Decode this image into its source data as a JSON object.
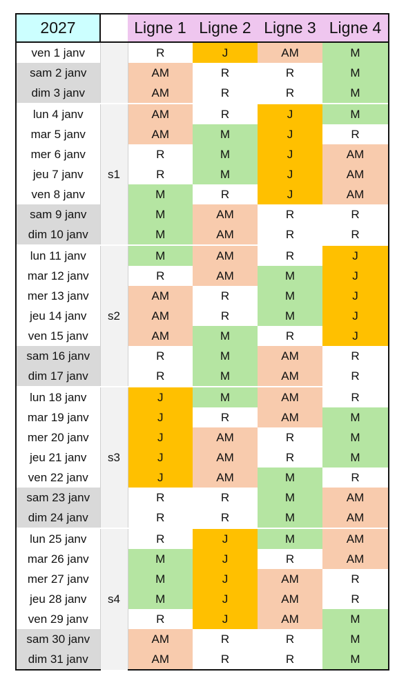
{
  "header": {
    "year": "2027",
    "lines": [
      "Ligne 1",
      "Ligne 2",
      "Ligne 3",
      "Ligne 4"
    ]
  },
  "shift_colors": {
    "R": "#ffffff",
    "J": "#ffc000",
    "AM": "#f8cbad",
    "M": "#b5e5a2"
  },
  "date_colors": {
    "weekday": "#ffffff",
    "weekend": "#d9d9d9",
    "year_cell": "#ccffff",
    "line_header": "#efc6ef"
  },
  "weeks": [
    {
      "label": "",
      "start": 0,
      "span": 3
    },
    {
      "label": "s1",
      "start": 3,
      "span": 7
    },
    {
      "label": "s2",
      "start": 10,
      "span": 7
    },
    {
      "label": "s3",
      "start": 17,
      "span": 7
    },
    {
      "label": "s4",
      "start": 24,
      "span": 7
    }
  ],
  "rows": [
    {
      "date": "ven 1 janv",
      "weekend": false,
      "shifts": [
        "R",
        "J",
        "AM",
        "M"
      ]
    },
    {
      "date": "sam 2 janv",
      "weekend": true,
      "shifts": [
        "AM",
        "R",
        "R",
        "M"
      ]
    },
    {
      "date": "dim 3 janv",
      "weekend": true,
      "shifts": [
        "AM",
        "R",
        "R",
        "M"
      ]
    },
    {
      "date": "lun 4 janv",
      "weekend": false,
      "shifts": [
        "AM",
        "R",
        "J",
        "M"
      ]
    },
    {
      "date": "mar 5 janv",
      "weekend": false,
      "shifts": [
        "AM",
        "M",
        "J",
        "R"
      ]
    },
    {
      "date": "mer 6 janv",
      "weekend": false,
      "shifts": [
        "R",
        "M",
        "J",
        "AM"
      ]
    },
    {
      "date": "jeu 7 janv",
      "weekend": false,
      "shifts": [
        "R",
        "M",
        "J",
        "AM"
      ]
    },
    {
      "date": "ven 8 janv",
      "weekend": false,
      "shifts": [
        "M",
        "R",
        "J",
        "AM"
      ]
    },
    {
      "date": "sam 9 janv",
      "weekend": true,
      "shifts": [
        "M",
        "AM",
        "R",
        "R"
      ]
    },
    {
      "date": "dim 10 janv",
      "weekend": true,
      "shifts": [
        "M",
        "AM",
        "R",
        "R"
      ]
    },
    {
      "date": "lun 11 janv",
      "weekend": false,
      "shifts": [
        "M",
        "AM",
        "R",
        "J"
      ]
    },
    {
      "date": "mar 12 janv",
      "weekend": false,
      "shifts": [
        "R",
        "AM",
        "M",
        "J"
      ]
    },
    {
      "date": "mer 13 janv",
      "weekend": false,
      "shifts": [
        "AM",
        "R",
        "M",
        "J"
      ]
    },
    {
      "date": "jeu 14 janv",
      "weekend": false,
      "shifts": [
        "AM",
        "R",
        "M",
        "J"
      ]
    },
    {
      "date": "ven 15 janv",
      "weekend": false,
      "shifts": [
        "AM",
        "M",
        "R",
        "J"
      ]
    },
    {
      "date": "sam 16 janv",
      "weekend": true,
      "shifts": [
        "R",
        "M",
        "AM",
        "R"
      ]
    },
    {
      "date": "dim 17 janv",
      "weekend": true,
      "shifts": [
        "R",
        "M",
        "AM",
        "R"
      ]
    },
    {
      "date": "lun 18 janv",
      "weekend": false,
      "shifts": [
        "J",
        "M",
        "AM",
        "R"
      ]
    },
    {
      "date": "mar 19 janv",
      "weekend": false,
      "shifts": [
        "J",
        "R",
        "AM",
        "M"
      ]
    },
    {
      "date": "mer 20 janv",
      "weekend": false,
      "shifts": [
        "J",
        "AM",
        "R",
        "M"
      ]
    },
    {
      "date": "jeu 21 janv",
      "weekend": false,
      "shifts": [
        "J",
        "AM",
        "R",
        "M"
      ]
    },
    {
      "date": "ven 22 janv",
      "weekend": false,
      "shifts": [
        "J",
        "AM",
        "M",
        "R"
      ]
    },
    {
      "date": "sam 23 janv",
      "weekend": true,
      "shifts": [
        "R",
        "R",
        "M",
        "AM"
      ]
    },
    {
      "date": "dim 24 janv",
      "weekend": true,
      "shifts": [
        "R",
        "R",
        "M",
        "AM"
      ]
    },
    {
      "date": "lun 25 janv",
      "weekend": false,
      "shifts": [
        "R",
        "J",
        "M",
        "AM"
      ]
    },
    {
      "date": "mar 26 janv",
      "weekend": false,
      "shifts": [
        "M",
        "J",
        "R",
        "AM"
      ]
    },
    {
      "date": "mer 27 janv",
      "weekend": false,
      "shifts": [
        "M",
        "J",
        "AM",
        "R"
      ]
    },
    {
      "date": "jeu 28 janv",
      "weekend": false,
      "shifts": [
        "M",
        "J",
        "AM",
        "R"
      ]
    },
    {
      "date": "ven 29 janv",
      "weekend": false,
      "shifts": [
        "R",
        "J",
        "AM",
        "M"
      ]
    },
    {
      "date": "sam 30 janv",
      "weekend": true,
      "shifts": [
        "AM",
        "R",
        "R",
        "M"
      ]
    },
    {
      "date": "dim 31 janv",
      "weekend": true,
      "shifts": [
        "AM",
        "R",
        "R",
        "M"
      ]
    }
  ]
}
